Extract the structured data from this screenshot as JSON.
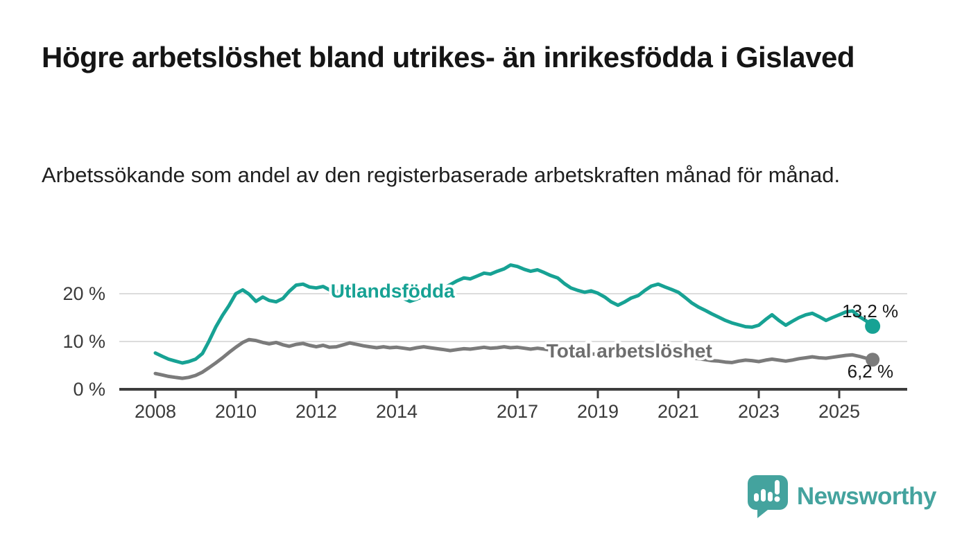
{
  "header": {
    "title": "Högre arbetslöshet bland utrikes- än inrikesfödda i Gislaved",
    "subtitle": "Arbetssökande som andel av den registerbaserade arbetskraften månad för månad."
  },
  "chart_data": {
    "type": "line",
    "title": "",
    "xlabel": "",
    "ylabel": "",
    "y_unit": "%",
    "ylim": [
      0,
      27
    ],
    "xlim": [
      2007.1,
      2026.9
    ],
    "grid": "horizontal-only",
    "legend_position": "inline-labels-on-lines",
    "yticks": [
      {
        "value": 0,
        "label": "0 %"
      },
      {
        "value": 10,
        "label": "10 %"
      },
      {
        "value": 20,
        "label": "20 %"
      }
    ],
    "xticks": [
      {
        "value": 2008,
        "label": "2008"
      },
      {
        "value": 2010,
        "label": "2010"
      },
      {
        "value": 2012,
        "label": "2012"
      },
      {
        "value": 2014,
        "label": "2014"
      },
      {
        "value": 2017,
        "label": "2017"
      },
      {
        "value": 2019,
        "label": "2019"
      },
      {
        "value": 2021,
        "label": "2021"
      },
      {
        "value": 2023,
        "label": "2023"
      },
      {
        "value": 2025,
        "label": "2025"
      }
    ],
    "series": [
      {
        "name": "Utlandsfödda",
        "color": "#17a294",
        "label_color": "#17a294",
        "end_label": "13,2 %",
        "last_value": 13.2,
        "label_anchor": {
          "year": 2013.9,
          "value": 20.5
        },
        "points": [
          [
            2008.0,
            7.6
          ],
          [
            2008.17,
            6.9
          ],
          [
            2008.33,
            6.3
          ],
          [
            2008.5,
            5.9
          ],
          [
            2008.67,
            5.5
          ],
          [
            2008.83,
            5.8
          ],
          [
            2009.0,
            6.3
          ],
          [
            2009.17,
            7.5
          ],
          [
            2009.33,
            10.0
          ],
          [
            2009.5,
            13.0
          ],
          [
            2009.67,
            15.5
          ],
          [
            2009.83,
            17.5
          ],
          [
            2010.0,
            20.0
          ],
          [
            2010.17,
            20.8
          ],
          [
            2010.33,
            19.9
          ],
          [
            2010.5,
            18.4
          ],
          [
            2010.67,
            19.3
          ],
          [
            2010.83,
            18.6
          ],
          [
            2011.0,
            18.3
          ],
          [
            2011.17,
            19.0
          ],
          [
            2011.33,
            20.5
          ],
          [
            2011.5,
            21.8
          ],
          [
            2011.67,
            22.0
          ],
          [
            2011.83,
            21.4
          ],
          [
            2012.0,
            21.2
          ],
          [
            2012.17,
            21.5
          ],
          [
            2012.33,
            20.8
          ],
          [
            2012.5,
            20.4
          ],
          [
            2012.67,
            20.7
          ],
          [
            2012.83,
            20.2
          ],
          [
            2013.0,
            20.5
          ],
          [
            2013.17,
            20.9
          ],
          [
            2013.33,
            20.3
          ],
          [
            2013.5,
            19.9
          ],
          [
            2013.67,
            19.6
          ],
          [
            2013.83,
            20.0
          ],
          [
            2014.0,
            19.7
          ],
          [
            2014.17,
            19.0
          ],
          [
            2014.33,
            18.4
          ],
          [
            2014.5,
            18.9
          ],
          [
            2014.67,
            19.5
          ],
          [
            2014.83,
            20.0
          ],
          [
            2015.0,
            20.5
          ],
          [
            2015.17,
            21.1
          ],
          [
            2015.33,
            21.9
          ],
          [
            2015.5,
            22.7
          ],
          [
            2015.67,
            23.3
          ],
          [
            2015.83,
            23.1
          ],
          [
            2016.0,
            23.7
          ],
          [
            2016.17,
            24.3
          ],
          [
            2016.33,
            24.1
          ],
          [
            2016.5,
            24.7
          ],
          [
            2016.67,
            25.2
          ],
          [
            2016.83,
            26.0
          ],
          [
            2017.0,
            25.7
          ],
          [
            2017.17,
            25.1
          ],
          [
            2017.33,
            24.7
          ],
          [
            2017.5,
            25.0
          ],
          [
            2017.67,
            24.4
          ],
          [
            2017.83,
            23.8
          ],
          [
            2018.0,
            23.3
          ],
          [
            2018.17,
            22.1
          ],
          [
            2018.33,
            21.2
          ],
          [
            2018.5,
            20.7
          ],
          [
            2018.67,
            20.3
          ],
          [
            2018.83,
            20.6
          ],
          [
            2019.0,
            20.1
          ],
          [
            2019.17,
            19.3
          ],
          [
            2019.33,
            18.3
          ],
          [
            2019.5,
            17.6
          ],
          [
            2019.67,
            18.3
          ],
          [
            2019.83,
            19.1
          ],
          [
            2020.0,
            19.6
          ],
          [
            2020.17,
            20.7
          ],
          [
            2020.33,
            21.6
          ],
          [
            2020.5,
            22.0
          ],
          [
            2020.67,
            21.4
          ],
          [
            2020.83,
            20.9
          ],
          [
            2021.0,
            20.3
          ],
          [
            2021.17,
            19.2
          ],
          [
            2021.33,
            18.1
          ],
          [
            2021.5,
            17.2
          ],
          [
            2021.67,
            16.5
          ],
          [
            2021.83,
            15.8
          ],
          [
            2022.0,
            15.1
          ],
          [
            2022.17,
            14.4
          ],
          [
            2022.33,
            13.9
          ],
          [
            2022.5,
            13.5
          ],
          [
            2022.67,
            13.1
          ],
          [
            2022.83,
            13.0
          ],
          [
            2023.0,
            13.4
          ],
          [
            2023.17,
            14.6
          ],
          [
            2023.33,
            15.6
          ],
          [
            2023.5,
            14.4
          ],
          [
            2023.67,
            13.4
          ],
          [
            2023.83,
            14.2
          ],
          [
            2024.0,
            15.0
          ],
          [
            2024.17,
            15.6
          ],
          [
            2024.33,
            15.9
          ],
          [
            2024.5,
            15.2
          ],
          [
            2024.67,
            14.4
          ],
          [
            2024.83,
            15.0
          ],
          [
            2025.0,
            15.6
          ],
          [
            2025.17,
            16.2
          ],
          [
            2025.33,
            16.4
          ],
          [
            2025.5,
            15.2
          ],
          [
            2025.67,
            14.3
          ],
          [
            2025.83,
            13.2
          ]
        ]
      },
      {
        "name": "Total arbetslöshet",
        "color": "#7b7b7b",
        "label_color": "#6e6e6e",
        "end_label": "6,2 %",
        "last_value": 6.2,
        "label_anchor": {
          "year": 2019.78,
          "value": 8.0
        },
        "points": [
          [
            2008.0,
            3.3
          ],
          [
            2008.17,
            3.0
          ],
          [
            2008.33,
            2.7
          ],
          [
            2008.5,
            2.5
          ],
          [
            2008.67,
            2.3
          ],
          [
            2008.83,
            2.5
          ],
          [
            2009.0,
            2.9
          ],
          [
            2009.17,
            3.6
          ],
          [
            2009.33,
            4.5
          ],
          [
            2009.5,
            5.5
          ],
          [
            2009.67,
            6.6
          ],
          [
            2009.83,
            7.7
          ],
          [
            2010.0,
            8.8
          ],
          [
            2010.17,
            9.8
          ],
          [
            2010.33,
            10.4
          ],
          [
            2010.5,
            10.2
          ],
          [
            2010.67,
            9.8
          ],
          [
            2010.83,
            9.5
          ],
          [
            2011.0,
            9.8
          ],
          [
            2011.17,
            9.3
          ],
          [
            2011.33,
            9.0
          ],
          [
            2011.5,
            9.4
          ],
          [
            2011.67,
            9.6
          ],
          [
            2011.83,
            9.2
          ],
          [
            2012.0,
            8.9
          ],
          [
            2012.17,
            9.2
          ],
          [
            2012.33,
            8.8
          ],
          [
            2012.5,
            8.9
          ],
          [
            2012.67,
            9.3
          ],
          [
            2012.83,
            9.7
          ],
          [
            2013.0,
            9.4
          ],
          [
            2013.17,
            9.1
          ],
          [
            2013.33,
            8.9
          ],
          [
            2013.5,
            8.7
          ],
          [
            2013.67,
            8.9
          ],
          [
            2013.83,
            8.7
          ],
          [
            2014.0,
            8.8
          ],
          [
            2014.17,
            8.6
          ],
          [
            2014.33,
            8.4
          ],
          [
            2014.5,
            8.7
          ],
          [
            2014.67,
            8.9
          ],
          [
            2014.83,
            8.7
          ],
          [
            2015.0,
            8.5
          ],
          [
            2015.17,
            8.3
          ],
          [
            2015.33,
            8.1
          ],
          [
            2015.5,
            8.3
          ],
          [
            2015.67,
            8.5
          ],
          [
            2015.83,
            8.4
          ],
          [
            2016.0,
            8.6
          ],
          [
            2016.17,
            8.8
          ],
          [
            2016.33,
            8.6
          ],
          [
            2016.5,
            8.7
          ],
          [
            2016.67,
            8.9
          ],
          [
            2016.83,
            8.7
          ],
          [
            2017.0,
            8.8
          ],
          [
            2017.17,
            8.6
          ],
          [
            2017.33,
            8.4
          ],
          [
            2017.5,
            8.6
          ],
          [
            2017.67,
            8.4
          ],
          [
            2017.83,
            8.2
          ],
          [
            2018.0,
            8.0
          ],
          [
            2018.17,
            7.8
          ],
          [
            2018.33,
            7.6
          ],
          [
            2018.5,
            7.4
          ],
          [
            2018.67,
            7.3
          ],
          [
            2018.83,
            7.4
          ],
          [
            2019.0,
            7.3
          ],
          [
            2019.17,
            7.1
          ],
          [
            2019.33,
            7.0
          ],
          [
            2019.5,
            6.9
          ],
          [
            2019.67,
            7.0
          ],
          [
            2019.83,
            7.2
          ],
          [
            2020.0,
            7.4
          ],
          [
            2020.17,
            7.7
          ],
          [
            2020.33,
            7.9
          ],
          [
            2020.5,
            7.8
          ],
          [
            2020.67,
            7.6
          ],
          [
            2020.83,
            7.4
          ],
          [
            2021.0,
            7.2
          ],
          [
            2021.17,
            6.9
          ],
          [
            2021.33,
            6.6
          ],
          [
            2021.5,
            6.4
          ],
          [
            2021.67,
            6.2
          ],
          [
            2021.83,
            6.0
          ],
          [
            2022.0,
            5.9
          ],
          [
            2022.17,
            5.7
          ],
          [
            2022.33,
            5.6
          ],
          [
            2022.5,
            5.9
          ],
          [
            2022.67,
            6.1
          ],
          [
            2022.83,
            6.0
          ],
          [
            2023.0,
            5.8
          ],
          [
            2023.17,
            6.1
          ],
          [
            2023.33,
            6.3
          ],
          [
            2023.5,
            6.1
          ],
          [
            2023.67,
            5.9
          ],
          [
            2023.83,
            6.1
          ],
          [
            2024.0,
            6.4
          ],
          [
            2024.17,
            6.6
          ],
          [
            2024.33,
            6.8
          ],
          [
            2024.5,
            6.6
          ],
          [
            2024.67,
            6.5
          ],
          [
            2024.83,
            6.7
          ],
          [
            2025.0,
            6.9
          ],
          [
            2025.17,
            7.1
          ],
          [
            2025.33,
            7.2
          ],
          [
            2025.5,
            6.9
          ],
          [
            2025.67,
            6.5
          ],
          [
            2025.83,
            6.2
          ]
        ]
      }
    ],
    "colors": {
      "axis": "#3d3d3d",
      "gridline": "#dcdcdc",
      "tick_text": "#3a3a3a",
      "value_label_text": "#1a1a1a"
    }
  },
  "footer": {
    "brand": "Newsworthy",
    "brand_color": "#44a39e",
    "logo_icon": "newsworthy-speech-bubble-bar-chart"
  }
}
